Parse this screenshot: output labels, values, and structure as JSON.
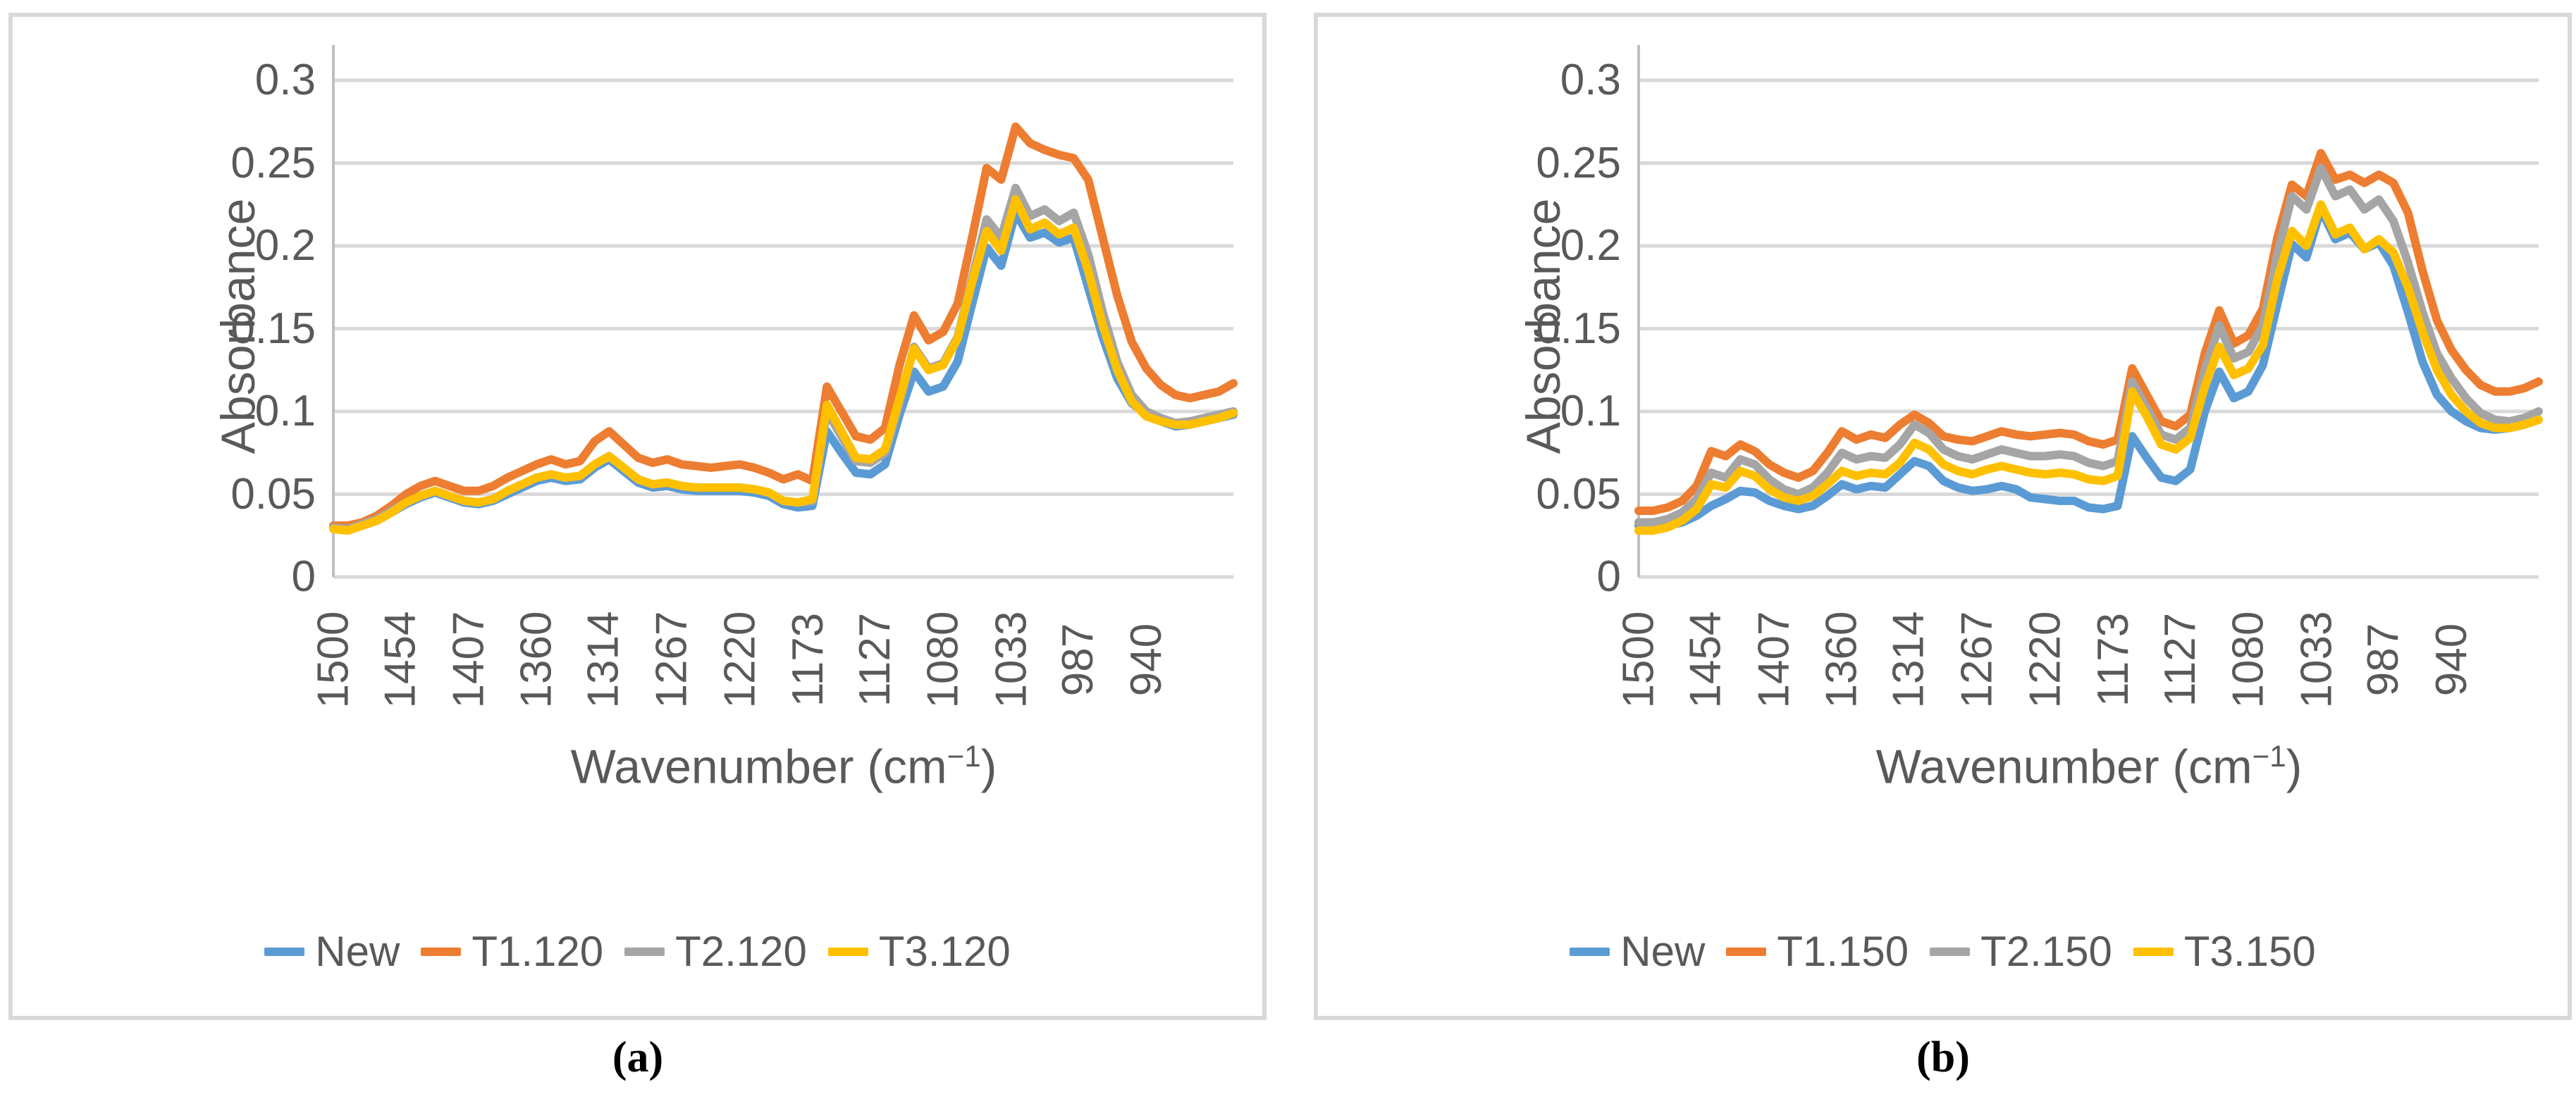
{
  "figure": {
    "background": "#FFFFFF",
    "text_color": "#595959",
    "gridline_color": "#D9D9D9",
    "axis_line_color": "#BFBFBF"
  },
  "chart_data": [
    {
      "type": "line",
      "panel_label": "(a)",
      "ylabel": "Absorbance",
      "xlabel_main": "Wavenumber (cm",
      "xlabel_sup": "−1",
      "xlabel_close": ")",
      "ylim": [
        0,
        0.3
      ],
      "xlim": [
        1500,
        880
      ],
      "grid": "horizontal",
      "legend_position": "bottom",
      "yticks": [
        {
          "label": "0",
          "value": 0
        },
        {
          "label": "0.05",
          "value": 0.05
        },
        {
          "label": "0.1",
          "value": 0.1
        },
        {
          "label": "0.15",
          "value": 0.15
        },
        {
          "label": "0.2",
          "value": 0.2
        },
        {
          "label": "0.25",
          "value": 0.25
        },
        {
          "label": "0.3",
          "value": 0.3
        }
      ],
      "xticks": [
        1500,
        1454,
        1407,
        1360,
        1314,
        1267,
        1220,
        1173,
        1127,
        1080,
        1033,
        987,
        940
      ],
      "x": [
        1500,
        1490,
        1480,
        1470,
        1460,
        1450,
        1440,
        1430,
        1420,
        1410,
        1400,
        1390,
        1380,
        1370,
        1360,
        1350,
        1340,
        1330,
        1320,
        1310,
        1300,
        1290,
        1280,
        1270,
        1260,
        1250,
        1240,
        1230,
        1220,
        1210,
        1200,
        1190,
        1180,
        1170,
        1160,
        1150,
        1140,
        1130,
        1120,
        1110,
        1100,
        1090,
        1080,
        1070,
        1060,
        1050,
        1040,
        1030,
        1020,
        1010,
        1000,
        990,
        980,
        970,
        960,
        950,
        940,
        930,
        920,
        910,
        900,
        890,
        880
      ],
      "series": [
        {
          "name": "New",
          "color": "#5B9BD5",
          "values": [
            0.03,
            0.029,
            0.031,
            0.034,
            0.039,
            0.044,
            0.048,
            0.051,
            0.048,
            0.045,
            0.044,
            0.046,
            0.05,
            0.054,
            0.058,
            0.06,
            0.058,
            0.059,
            0.066,
            0.071,
            0.064,
            0.057,
            0.054,
            0.055,
            0.053,
            0.052,
            0.052,
            0.052,
            0.052,
            0.051,
            0.049,
            0.044,
            0.042,
            0.043,
            0.088,
            0.075,
            0.063,
            0.062,
            0.068,
            0.098,
            0.124,
            0.112,
            0.115,
            0.13,
            0.165,
            0.199,
            0.188,
            0.22,
            0.205,
            0.208,
            0.202,
            0.205,
            0.175,
            0.145,
            0.12,
            0.105,
            0.098,
            0.094,
            0.091,
            0.092,
            0.094,
            0.096,
            0.098
          ]
        },
        {
          "name": "T1.120",
          "color": "#ED7D31",
          "values": [
            0.031,
            0.031,
            0.033,
            0.037,
            0.043,
            0.05,
            0.055,
            0.058,
            0.055,
            0.052,
            0.052,
            0.055,
            0.06,
            0.064,
            0.068,
            0.071,
            0.068,
            0.07,
            0.082,
            0.088,
            0.08,
            0.072,
            0.069,
            0.071,
            0.068,
            0.067,
            0.066,
            0.067,
            0.068,
            0.066,
            0.063,
            0.059,
            0.062,
            0.058,
            0.115,
            0.1,
            0.085,
            0.083,
            0.09,
            0.128,
            0.158,
            0.143,
            0.148,
            0.165,
            0.205,
            0.247,
            0.24,
            0.272,
            0.262,
            0.258,
            0.255,
            0.253,
            0.24,
            0.205,
            0.17,
            0.142,
            0.126,
            0.116,
            0.11,
            0.108,
            0.11,
            0.112,
            0.117
          ]
        },
        {
          "name": "T2.120",
          "color": "#A5A5A5",
          "values": [
            0.03,
            0.029,
            0.032,
            0.035,
            0.04,
            0.045,
            0.049,
            0.052,
            0.049,
            0.046,
            0.045,
            0.047,
            0.052,
            0.056,
            0.06,
            0.062,
            0.06,
            0.061,
            0.068,
            0.073,
            0.066,
            0.059,
            0.056,
            0.057,
            0.055,
            0.054,
            0.054,
            0.054,
            0.054,
            0.053,
            0.051,
            0.046,
            0.045,
            0.046,
            0.1,
            0.085,
            0.07,
            0.069,
            0.075,
            0.105,
            0.139,
            0.126,
            0.129,
            0.145,
            0.18,
            0.216,
            0.205,
            0.235,
            0.218,
            0.222,
            0.215,
            0.22,
            0.195,
            0.16,
            0.13,
            0.11,
            0.1,
            0.096,
            0.093,
            0.094,
            0.096,
            0.098,
            0.1
          ]
        },
        {
          "name": "T3.120",
          "color": "#FFC000",
          "values": [
            0.029,
            0.028,
            0.031,
            0.034,
            0.039,
            0.045,
            0.049,
            0.052,
            0.049,
            0.046,
            0.045,
            0.047,
            0.052,
            0.056,
            0.06,
            0.062,
            0.06,
            0.061,
            0.068,
            0.073,
            0.066,
            0.059,
            0.056,
            0.057,
            0.055,
            0.054,
            0.054,
            0.054,
            0.054,
            0.053,
            0.051,
            0.046,
            0.045,
            0.047,
            0.104,
            0.088,
            0.072,
            0.071,
            0.077,
            0.108,
            0.138,
            0.125,
            0.128,
            0.144,
            0.178,
            0.209,
            0.197,
            0.228,
            0.21,
            0.214,
            0.207,
            0.211,
            0.185,
            0.152,
            0.125,
            0.106,
            0.097,
            0.094,
            0.092,
            0.092,
            0.094,
            0.096,
            0.099
          ]
        }
      ]
    },
    {
      "type": "line",
      "panel_label": "(b)",
      "ylabel": "Absorbance",
      "xlabel_main": "Wavenumber (cm",
      "xlabel_sup": "−1",
      "xlabel_close": ")",
      "ylim": [
        0,
        0.3
      ],
      "xlim": [
        1500,
        880
      ],
      "grid": "horizontal",
      "legend_position": "bottom",
      "yticks": [
        {
          "label": "0",
          "value": 0
        },
        {
          "label": "0.05",
          "value": 0.05
        },
        {
          "label": "0.1",
          "value": 0.1
        },
        {
          "label": "0.15",
          "value": 0.15
        },
        {
          "label": "0.2",
          "value": 0.2
        },
        {
          "label": "0.25",
          "value": 0.25
        },
        {
          "label": "0.3",
          "value": 0.3
        }
      ],
      "xticks": [
        1500,
        1454,
        1407,
        1360,
        1314,
        1267,
        1220,
        1173,
        1127,
        1080,
        1033,
        987,
        940
      ],
      "x": [
        1500,
        1490,
        1480,
        1470,
        1460,
        1450,
        1440,
        1430,
        1420,
        1410,
        1400,
        1390,
        1380,
        1370,
        1360,
        1350,
        1340,
        1330,
        1320,
        1310,
        1300,
        1290,
        1280,
        1270,
        1260,
        1250,
        1240,
        1230,
        1220,
        1210,
        1200,
        1190,
        1180,
        1170,
        1160,
        1150,
        1140,
        1130,
        1120,
        1110,
        1100,
        1090,
        1080,
        1070,
        1060,
        1050,
        1040,
        1030,
        1020,
        1010,
        1000,
        990,
        980,
        970,
        960,
        950,
        940,
        930,
        920,
        910,
        900,
        890,
        880
      ],
      "series": [
        {
          "name": "New",
          "color": "#5B9BD5",
          "values": [
            0.031,
            0.03,
            0.031,
            0.033,
            0.037,
            0.043,
            0.047,
            0.052,
            0.051,
            0.046,
            0.043,
            0.041,
            0.043,
            0.049,
            0.056,
            0.053,
            0.055,
            0.054,
            0.062,
            0.07,
            0.067,
            0.058,
            0.054,
            0.052,
            0.053,
            0.055,
            0.053,
            0.048,
            0.047,
            0.046,
            0.046,
            0.042,
            0.041,
            0.043,
            0.085,
            0.072,
            0.06,
            0.058,
            0.065,
            0.1,
            0.124,
            0.108,
            0.112,
            0.128,
            0.165,
            0.201,
            0.193,
            0.222,
            0.204,
            0.208,
            0.198,
            0.202,
            0.188,
            0.16,
            0.13,
            0.11,
            0.1,
            0.094,
            0.09,
            0.089,
            0.09,
            0.092,
            0.095
          ]
        },
        {
          "name": "T1.150",
          "color": "#ED7D31",
          "values": [
            0.04,
            0.04,
            0.042,
            0.046,
            0.055,
            0.076,
            0.073,
            0.08,
            0.076,
            0.068,
            0.063,
            0.06,
            0.064,
            0.075,
            0.088,
            0.083,
            0.086,
            0.084,
            0.092,
            0.098,
            0.093,
            0.085,
            0.083,
            0.082,
            0.085,
            0.088,
            0.086,
            0.085,
            0.086,
            0.087,
            0.086,
            0.082,
            0.08,
            0.083,
            0.126,
            0.11,
            0.094,
            0.091,
            0.098,
            0.135,
            0.161,
            0.141,
            0.146,
            0.162,
            0.205,
            0.237,
            0.23,
            0.256,
            0.24,
            0.243,
            0.238,
            0.243,
            0.238,
            0.22,
            0.185,
            0.155,
            0.137,
            0.125,
            0.116,
            0.112,
            0.112,
            0.114,
            0.118
          ]
        },
        {
          "name": "T2.150",
          "color": "#A5A5A5",
          "values": [
            0.033,
            0.033,
            0.035,
            0.039,
            0.047,
            0.063,
            0.06,
            0.071,
            0.068,
            0.059,
            0.053,
            0.05,
            0.054,
            0.063,
            0.075,
            0.071,
            0.073,
            0.072,
            0.08,
            0.092,
            0.087,
            0.077,
            0.073,
            0.071,
            0.074,
            0.077,
            0.075,
            0.073,
            0.073,
            0.074,
            0.073,
            0.069,
            0.067,
            0.07,
            0.118,
            0.102,
            0.086,
            0.083,
            0.09,
            0.125,
            0.152,
            0.132,
            0.136,
            0.152,
            0.195,
            0.23,
            0.222,
            0.247,
            0.23,
            0.234,
            0.222,
            0.228,
            0.215,
            0.19,
            0.16,
            0.135,
            0.12,
            0.108,
            0.099,
            0.095,
            0.094,
            0.096,
            0.1
          ]
        },
        {
          "name": "T3.150",
          "color": "#FFC000",
          "values": [
            0.028,
            0.028,
            0.03,
            0.034,
            0.041,
            0.056,
            0.054,
            0.064,
            0.061,
            0.053,
            0.048,
            0.046,
            0.049,
            0.056,
            0.064,
            0.061,
            0.063,
            0.062,
            0.069,
            0.081,
            0.077,
            0.068,
            0.064,
            0.062,
            0.065,
            0.067,
            0.065,
            0.063,
            0.062,
            0.063,
            0.062,
            0.059,
            0.058,
            0.061,
            0.112,
            0.097,
            0.08,
            0.077,
            0.084,
            0.115,
            0.139,
            0.122,
            0.126,
            0.14,
            0.18,
            0.209,
            0.2,
            0.225,
            0.207,
            0.211,
            0.198,
            0.204,
            0.196,
            0.175,
            0.148,
            0.125,
            0.11,
            0.1,
            0.093,
            0.09,
            0.09,
            0.092,
            0.095
          ]
        }
      ]
    }
  ]
}
